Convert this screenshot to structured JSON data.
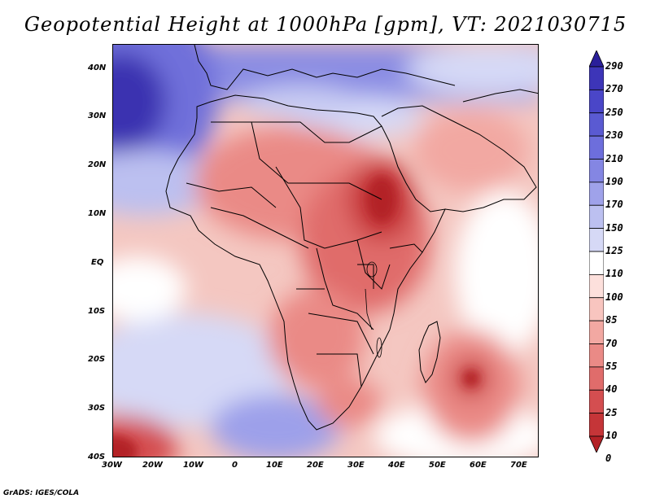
{
  "title": "Geopotential Height at 1000hPa [gpm], VT: 2021030715",
  "credit": "GrADS: IGES/COLA",
  "lat_ticks": [
    "40N",
    "30N",
    "20N",
    "10N",
    "EQ",
    "10S",
    "20S",
    "30S",
    "40S"
  ],
  "lon_ticks": [
    "30W",
    "20W",
    "10W",
    "0",
    "10E",
    "20E",
    "30E",
    "40E",
    "50E",
    "60E",
    "70E"
  ],
  "colorbar": {
    "labels": [
      "290",
      "270",
      "250",
      "230",
      "210",
      "190",
      "170",
      "150",
      "125",
      "110",
      "100",
      "85",
      "70",
      "55",
      "40",
      "25",
      "10",
      "0"
    ],
    "colors": [
      "#2a1f9a",
      "#3d35b8",
      "#4a46c8",
      "#5a5ad2",
      "#6d6edc",
      "#8486e3",
      "#9fa2ea",
      "#bcc0f0",
      "#d6d9f6",
      "#ffffff",
      "#fde0dc",
      "#f8c5bf",
      "#f2a8a2",
      "#ea8a86",
      "#e06c6b",
      "#d44e50",
      "#c53538",
      "#b32126"
    ]
  }
}
